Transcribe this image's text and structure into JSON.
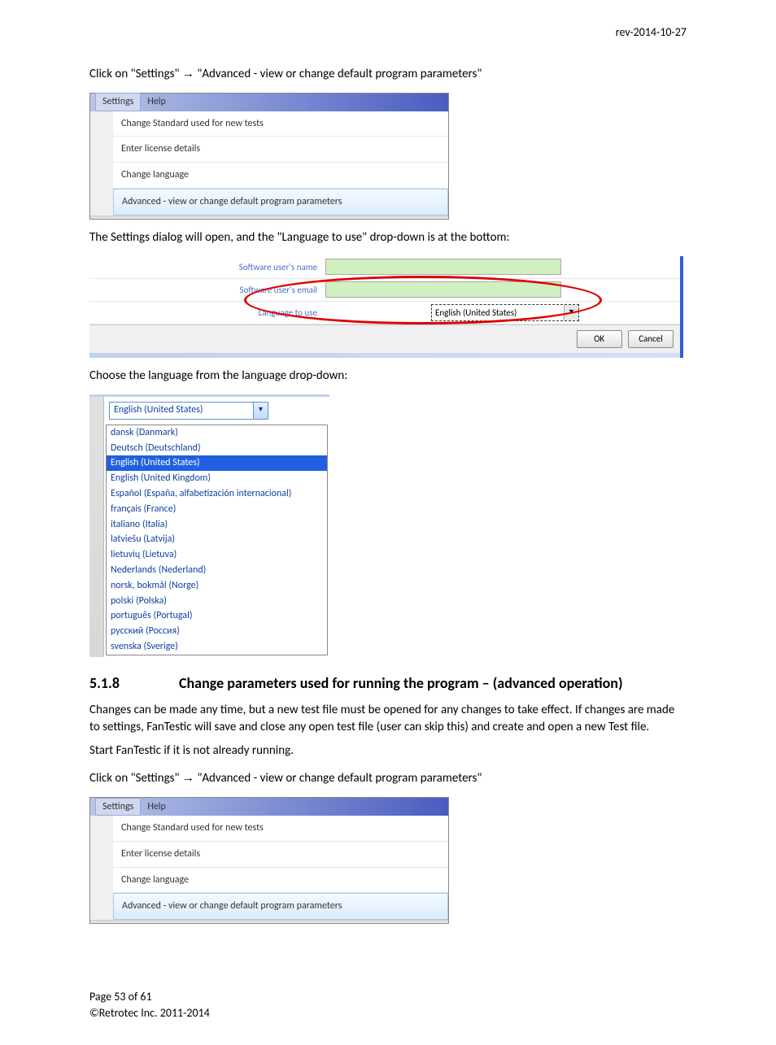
{
  "revision": "rev-2014-10-27",
  "instructions": {
    "click_settings_1": "Click on \"Settings\" → \"Advanced - view or change default program parameters\"",
    "dialog_opens": "The Settings dialog will open, and the \"Language to use\" drop-down is at the bottom:",
    "choose_lang": "Choose the language from the language drop-down:",
    "changes_para": "Changes can be made any time, but a new test file must be opened for any changes to take effect. If changes are made to settings, FanTestic will save and close any open test file (user can skip this) and create and open a new Test file.",
    "start_fantestic": "Start FanTestic if it is not already running.",
    "click_settings_2": "Click on \"Settings\" → \"Advanced - view or change default program parameters\""
  },
  "menubar": {
    "settings": "Settings",
    "help": "Help",
    "items": [
      "Change Standard used for new tests",
      "Enter license details",
      "Change language",
      "Advanced - view or change default program parameters"
    ]
  },
  "dialog": {
    "labels": {
      "user_name": "Software user's name",
      "user_email": "Software user's email",
      "language": "Language to use"
    },
    "selected_language": "English (United States)",
    "ok": "OK",
    "cancel": "Cancel"
  },
  "language_dropdown": {
    "selected": "English (United States)",
    "options": [
      "dansk (Danmark)",
      "Deutsch (Deutschland)",
      "English (United States)",
      "English (United Kingdom)",
      "Español (España, alfabetización internacional)",
      "français (France)",
      "italiano (Italia)",
      "latviešu (Latvija)",
      "lietuvių (Lietuva)",
      "Nederlands (Nederland)",
      "norsk, bokmål (Norge)",
      "polski (Polska)",
      "português (Portugal)",
      "русский (Россия)",
      "svenska (Sverige)"
    ],
    "highlighted_index": 2
  },
  "section": {
    "number": "5.1.8",
    "title": "Change parameters used for running the program – (advanced operation)"
  },
  "footer": {
    "page": "Page 53 of 61",
    "copyright": "©Retrotec Inc. 2011-2014"
  }
}
